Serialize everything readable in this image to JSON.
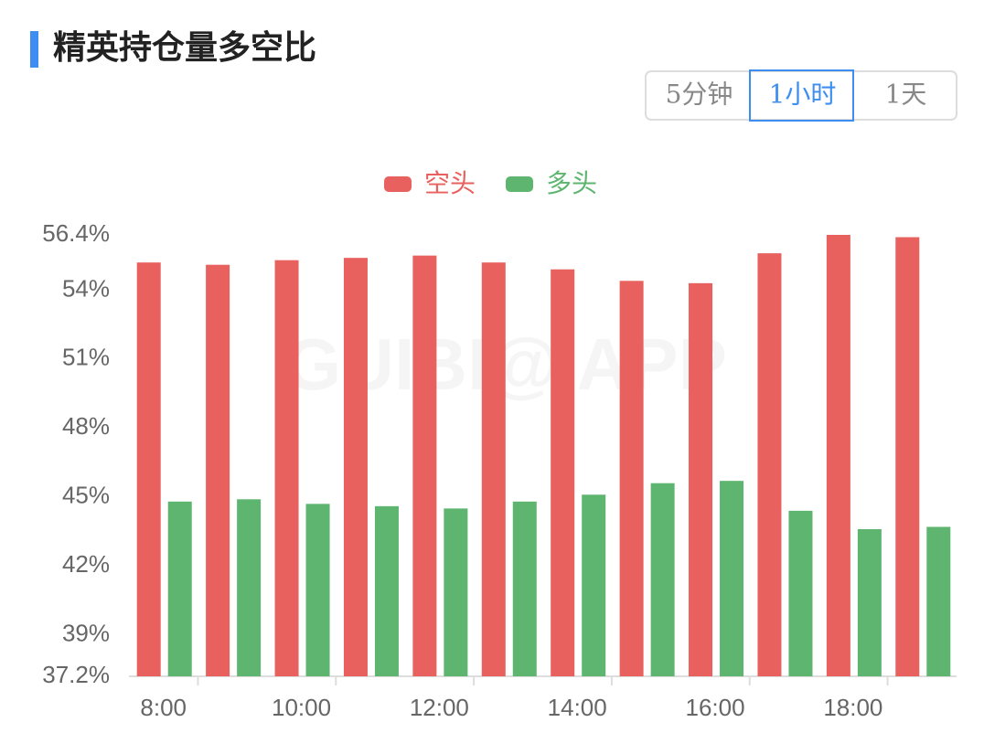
{
  "chart_data": {
    "type": "bar",
    "title": "精英持仓量多空比",
    "intervals": [
      "5分钟",
      "1小时",
      "1天"
    ],
    "selected_interval": 1,
    "watermark": "GUIBI@ APP",
    "categories": [
      "8:00",
      null,
      "10:00",
      null,
      "12:00",
      null,
      "14:00",
      null,
      "16:00",
      null,
      "18:00",
      null
    ],
    "series": [
      {
        "name": "空头",
        "color": "#e8615f",
        "values": [
          55.2,
          55.1,
          55.3,
          55.4,
          55.5,
          55.2,
          54.9,
          54.4,
          54.3,
          55.6,
          56.4,
          56.3
        ]
      },
      {
        "name": "多头",
        "color": "#5db56f",
        "values": [
          44.8,
          44.9,
          44.7,
          44.6,
          44.5,
          44.8,
          45.1,
          45.6,
          45.7,
          44.4,
          43.6,
          43.7
        ]
      }
    ],
    "ylim": [
      37.2,
      56.4
    ],
    "yticks": [
      {
        "value": 37.2,
        "label": "37.2%"
      },
      {
        "value": 39,
        "label": "39%"
      },
      {
        "value": 42,
        "label": "42%"
      },
      {
        "value": 45,
        "label": "45%"
      },
      {
        "value": 48,
        "label": "48%"
      },
      {
        "value": 51,
        "label": "51%"
      },
      {
        "value": 54,
        "label": "54%"
      },
      {
        "value": 56.4,
        "label": "56.4%"
      }
    ],
    "grid": false,
    "legend": "top"
  }
}
